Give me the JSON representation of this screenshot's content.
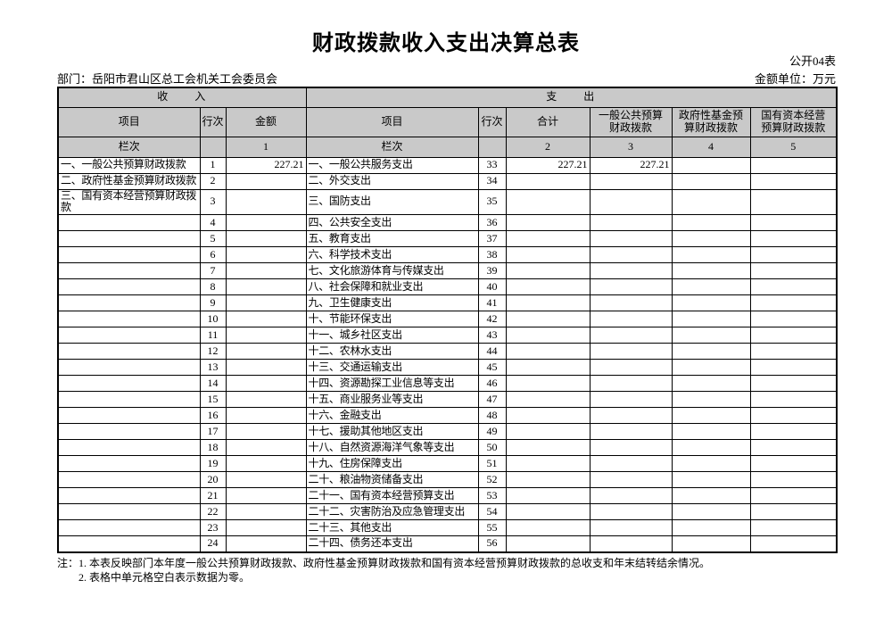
{
  "title": "财政拨款收入支出决算总表",
  "meta": {
    "table_code": "公开04表",
    "department_label": "部门：岳阳市君山区总工会机关工会委员会",
    "unit_label": "金额单位：万元"
  },
  "table": {
    "income_header": "收　　入",
    "expenditure_header": "支　　出",
    "columns": {
      "item": "项目",
      "line_no": "行次",
      "amount": "金额",
      "total": "合计",
      "general": "一般公共预算\n财政拨款",
      "gov_fund": "政府性基金预\n算财政拨款",
      "state_capital": "国有资本经营\n预算财政拨款"
    },
    "lanci": "栏次",
    "colnums": {
      "c1": "1",
      "c2": "2",
      "c3": "3",
      "c4": "4",
      "c5": "5"
    },
    "rows": [
      [
        "一、一般公共预算财政拨款",
        "1",
        "227.21",
        "一、一般公共服务支出",
        "33",
        "227.21",
        "227.21",
        "",
        ""
      ],
      [
        "二、政府性基金预算财政拨款",
        "2",
        "",
        "二、外交支出",
        "34",
        "",
        "",
        "",
        ""
      ],
      [
        "三、国有资本经营预算财政拨款",
        "3",
        "",
        "三、国防支出",
        "35",
        "",
        "",
        "",
        ""
      ],
      [
        "",
        "4",
        "",
        "四、公共安全支出",
        "36",
        "",
        "",
        "",
        ""
      ],
      [
        "",
        "5",
        "",
        "五、教育支出",
        "37",
        "",
        "",
        "",
        ""
      ],
      [
        "",
        "6",
        "",
        "六、科学技术支出",
        "38",
        "",
        "",
        "",
        ""
      ],
      [
        "",
        "7",
        "",
        "七、文化旅游体育与传媒支出",
        "39",
        "",
        "",
        "",
        ""
      ],
      [
        "",
        "8",
        "",
        "八、社会保障和就业支出",
        "40",
        "",
        "",
        "",
        ""
      ],
      [
        "",
        "9",
        "",
        "九、卫生健康支出",
        "41",
        "",
        "",
        "",
        ""
      ],
      [
        "",
        "10",
        "",
        "十、节能环保支出",
        "42",
        "",
        "",
        "",
        ""
      ],
      [
        "",
        "11",
        "",
        "十一、城乡社区支出",
        "43",
        "",
        "",
        "",
        ""
      ],
      [
        "",
        "12",
        "",
        "十二、农林水支出",
        "44",
        "",
        "",
        "",
        ""
      ],
      [
        "",
        "13",
        "",
        "十三、交通运输支出",
        "45",
        "",
        "",
        "",
        ""
      ],
      [
        "",
        "14",
        "",
        "十四、资源勘探工业信息等支出",
        "46",
        "",
        "",
        "",
        ""
      ],
      [
        "",
        "15",
        "",
        "十五、商业服务业等支出",
        "47",
        "",
        "",
        "",
        ""
      ],
      [
        "",
        "16",
        "",
        "十六、金融支出",
        "48",
        "",
        "",
        "",
        ""
      ],
      [
        "",
        "17",
        "",
        "十七、援助其他地区支出",
        "49",
        "",
        "",
        "",
        ""
      ],
      [
        "",
        "18",
        "",
        "十八、自然资源海洋气象等支出",
        "50",
        "",
        "",
        "",
        ""
      ],
      [
        "",
        "19",
        "",
        "十九、住房保障支出",
        "51",
        "",
        "",
        "",
        ""
      ],
      [
        "",
        "20",
        "",
        "二十、粮油物资储备支出",
        "52",
        "",
        "",
        "",
        ""
      ],
      [
        "",
        "21",
        "",
        "二十一、国有资本经营预算支出",
        "53",
        "",
        "",
        "",
        ""
      ],
      [
        "",
        "22",
        "",
        "二十二、灾害防治及应急管理支出",
        "54",
        "",
        "",
        "",
        ""
      ],
      [
        "",
        "23",
        "",
        "二十三、其他支出",
        "55",
        "",
        "",
        "",
        ""
      ],
      [
        "",
        "24",
        "",
        "二十四、债务还本支出",
        "56",
        "",
        "",
        "",
        ""
      ]
    ]
  },
  "notes": {
    "line1": "注：1. 本表反映部门本年度一般公共预算财政拨款、政府性基金预算财政拨款和国有资本经营预算财政拨款的总收支和年末结转结余情况。",
    "line2": "2. 表格中单元格空白表示数据为零。"
  }
}
